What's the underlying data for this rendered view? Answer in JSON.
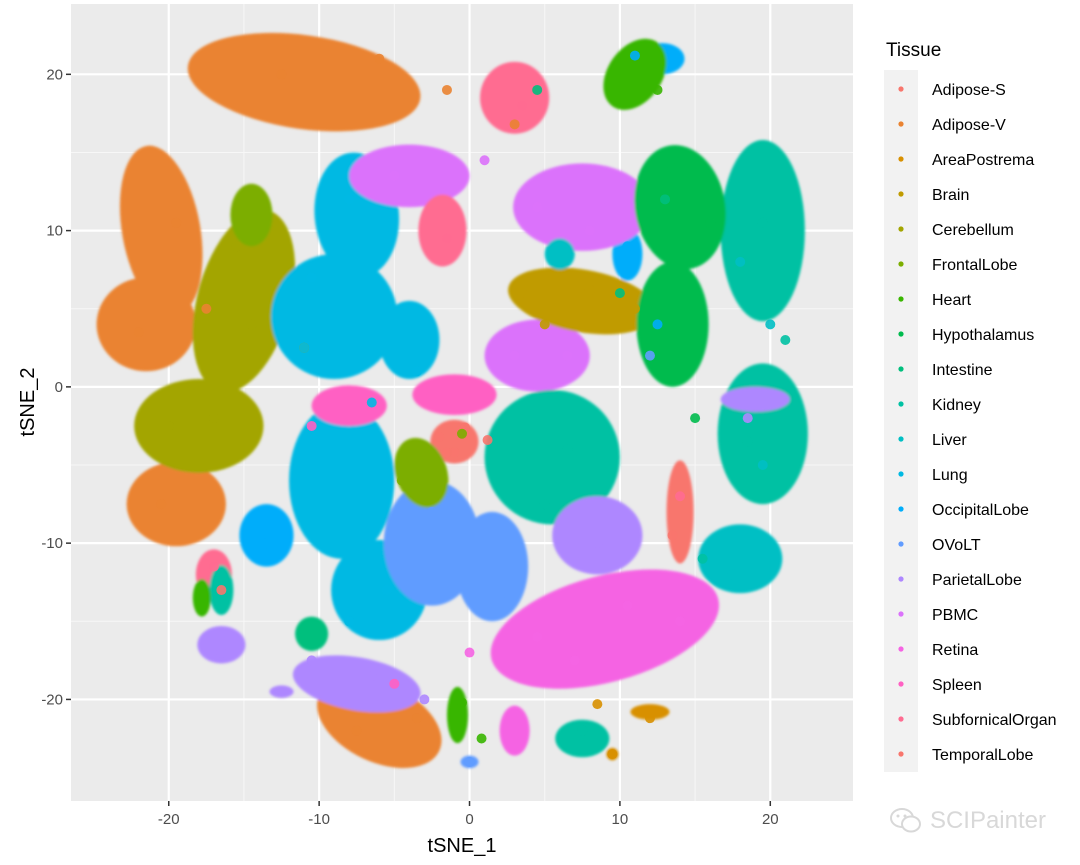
{
  "chart_data": {
    "type": "scatter",
    "title": "",
    "xlabel": "tSNE_1",
    "ylabel": "tSNE_2",
    "xlim": [
      -26.5,
      25.5
    ],
    "ylim": [
      -26.5,
      24.5
    ],
    "xticks": [
      -20,
      -10,
      0,
      10,
      20
    ],
    "yticks": [
      -20,
      -10,
      0,
      10,
      20
    ],
    "xtick_labels": [
      "-20",
      "-10",
      "0",
      "10",
      "20"
    ],
    "ytick_labels": [
      "-20",
      "-10",
      "0",
      "10",
      "20"
    ],
    "grid": true,
    "legend_title": "Tissue",
    "legend_position": "right",
    "series": [
      {
        "name": "Adipose-S",
        "color": "#F8766D",
        "x": [
          -0.3,
          1.2,
          -1.5
        ],
        "y": [
          -2.6,
          -3.4,
          -4.2
        ]
      },
      {
        "name": "Adipose-V",
        "color": "#EA8331",
        "x": [
          -12.5,
          -6.0,
          -1.5,
          3.0,
          -19.5,
          -22.0,
          -17.5,
          -20.5,
          -7.5,
          -3.5
        ],
        "y": [
          20.0,
          21.0,
          19.0,
          16.8,
          10.5,
          3.5,
          5.0,
          -7.5,
          -22.0,
          -21.2
        ]
      },
      {
        "name": "AreaPostrema",
        "color": "#D89000",
        "x": [
          8.5,
          12.0,
          9.5
        ],
        "y": [
          -20.3,
          -21.2,
          -23.5
        ]
      },
      {
        "name": "Brain",
        "color": "#C09B00",
        "x": [
          3.5,
          8.0,
          11.0,
          5.0
        ],
        "y": [
          6.0,
          6.2,
          5.0,
          4.0
        ]
      },
      {
        "name": "Cerebellum",
        "color": "#A3A500",
        "x": [
          -20.0,
          -17.0,
          -14.5,
          -15.5,
          -11.0
        ],
        "y": [
          -2.5,
          -2.0,
          4.0,
          9.0,
          2.5
        ]
      },
      {
        "name": "FrontalLobe",
        "color": "#7CAE00",
        "x": [
          -14.5,
          -3.0,
          -4.5,
          -0.5
        ],
        "y": [
          10.8,
          -4.5,
          -6.0,
          -3.0
        ]
      },
      {
        "name": "Heart",
        "color": "#39B600",
        "x": [
          10.0,
          12.5,
          -17.8,
          -0.5,
          0.8
        ],
        "y": [
          20.5,
          19.0,
          -13.5,
          -20.2,
          -22.5
        ]
      },
      {
        "name": "Hypothalamus",
        "color": "#00BB4E",
        "x": [
          13.5,
          16.0,
          12.0,
          15.0
        ],
        "y": [
          14.0,
          10.5,
          2.0,
          -2.0
        ]
      },
      {
        "name": "Intestine",
        "color": "#00BF7D",
        "x": [
          4.5,
          13.0,
          10.0
        ],
        "y": [
          19.0,
          12.0,
          6.0
        ]
      },
      {
        "name": "Kidney",
        "color": "#00C1A3",
        "x": [
          19.5,
          21.0,
          6.5,
          5.0,
          18.5,
          15.5,
          7.5
        ],
        "y": [
          10.5,
          3.0,
          -4.0,
          -7.5,
          -3.5,
          -11.0,
          -22.0
        ]
      },
      {
        "name": "Liver",
        "color": "#00BFC4",
        "x": [
          18.0,
          20.0,
          19.5,
          17.5
        ],
        "y": [
          8.0,
          4.0,
          -5.0,
          -12.0
        ]
      },
      {
        "name": "Lung",
        "color": "#00B9E3",
        "x": [
          -8.0,
          -10.5,
          -11.0,
          -6.5,
          -3.5,
          -5.5,
          -8.0
        ],
        "y": [
          12.0,
          7.0,
          2.5,
          -1.0,
          1.0,
          -13.0,
          -15.0
        ]
      },
      {
        "name": "OccipitalLobe",
        "color": "#00ADFA",
        "x": [
          11.0,
          10.5,
          12.5,
          -13.5
        ],
        "y": [
          21.2,
          9.0,
          4.0,
          -10.0
        ]
      },
      {
        "name": "OVoLT",
        "color": "#619CFF",
        "x": [
          -2.5,
          -4.5,
          0.5,
          2.0,
          12.0,
          0.0
        ],
        "y": [
          -8.0,
          -12.0,
          -10.0,
          -13.5,
          2.0,
          -24.0
        ]
      },
      {
        "name": "ParietalLobe",
        "color": "#AE87FF",
        "x": [
          -16.5,
          -10.5,
          -6.5,
          -3.0,
          8.5,
          18.5
        ],
        "y": [
          -17.0,
          -17.5,
          -18.5,
          -20.0,
          -10.0,
          -2.0
        ]
      },
      {
        "name": "PBMC",
        "color": "#DB72FB",
        "x": [
          -5.0,
          1.0,
          4.5,
          8.0,
          3.0,
          6.5
        ],
        "y": [
          13.5,
          14.5,
          11.5,
          10.0,
          2.0,
          2.0
        ]
      },
      {
        "name": "Retina",
        "color": "#F564E3",
        "x": [
          4.5,
          10.5,
          7.0,
          14.0,
          0.0
        ],
        "y": [
          -16.0,
          -14.0,
          -17.5,
          -15.0,
          -17.0
        ]
      },
      {
        "name": "Spleen",
        "color": "#FF61C3",
        "x": [
          -8.0,
          -2.5,
          -10.5,
          -5.0
        ],
        "y": [
          -1.5,
          -0.5,
          -2.5,
          -19.0
        ]
      },
      {
        "name": "SubfornicalOrgan",
        "color": "#FF6C91",
        "x": [
          3.5,
          -1.5,
          -17.0,
          14.0
        ],
        "y": [
          18.0,
          9.5,
          -11.5,
          -7.0
        ]
      },
      {
        "name": "TemporalLobe",
        "color": "#F8766D",
        "x": [
          -2.0,
          -1.0,
          -16.5,
          13.5
        ],
        "y": [
          -3.2,
          -4.2,
          -13.0,
          -9.5
        ]
      }
    ]
  },
  "watermark": {
    "text": "SCIPainter",
    "icon": "wechat-icon"
  }
}
